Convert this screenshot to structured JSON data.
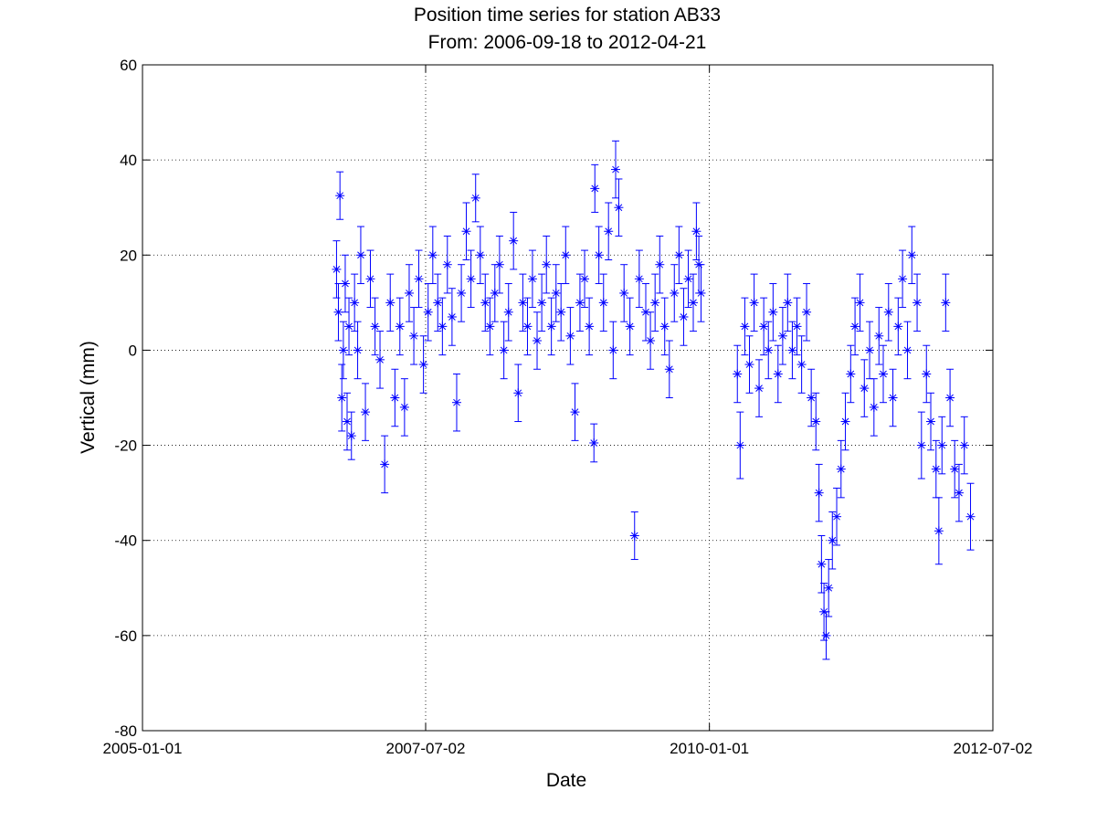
{
  "chart_data": {
    "type": "scatter",
    "title": "Position time series for station AB33",
    "subtitle": "From: 2006-09-18 to 2012-04-21",
    "xlabel": "Date",
    "ylabel": "Vertical (mm)",
    "xlim": [
      "2005-01-01",
      "2012-07-02"
    ],
    "ylim": [
      -80,
      60
    ],
    "xticks": [
      "2005-01-01",
      "2007-07-02",
      "2010-01-01",
      "2012-07-02"
    ],
    "yticks": [
      -80,
      -60,
      -40,
      -20,
      0,
      20,
      40,
      60
    ],
    "grid": true,
    "marker": "asterisk",
    "error_bars": true,
    "color": "#0000ff",
    "series": [
      {
        "values": [
          {
            "x": "2006-09-18",
            "y": 17,
            "err": 6
          },
          {
            "x": "2006-09-24",
            "y": 8,
            "err": 6
          },
          {
            "x": "2006-09-29",
            "y": 32.5,
            "err": 5
          },
          {
            "x": "2006-10-05",
            "y": -10,
            "err": 7
          },
          {
            "x": "2006-10-10",
            "y": 0,
            "err": 6
          },
          {
            "x": "2006-10-16",
            "y": 14,
            "err": 6
          },
          {
            "x": "2006-10-22",
            "y": -15,
            "err": 6
          },
          {
            "x": "2006-10-28",
            "y": 5,
            "err": 6
          },
          {
            "x": "2006-11-05",
            "y": -18,
            "err": 5
          },
          {
            "x": "2006-11-15",
            "y": 10,
            "err": 6
          },
          {
            "x": "2006-11-25",
            "y": 0,
            "err": 6
          },
          {
            "x": "2006-12-05",
            "y": 20,
            "err": 6
          },
          {
            "x": "2006-12-20",
            "y": -13,
            "err": 6
          },
          {
            "x": "2007-01-05",
            "y": 15,
            "err": 6
          },
          {
            "x": "2007-01-20",
            "y": 5,
            "err": 6
          },
          {
            "x": "2007-02-05",
            "y": -2,
            "err": 6
          },
          {
            "x": "2007-02-20",
            "y": -24,
            "err": 6
          },
          {
            "x": "2007-03-10",
            "y": 10,
            "err": 6
          },
          {
            "x": "2007-03-25",
            "y": -10,
            "err": 6
          },
          {
            "x": "2007-04-10",
            "y": 5,
            "err": 6
          },
          {
            "x": "2007-04-25",
            "y": -12,
            "err": 6
          },
          {
            "x": "2007-05-10",
            "y": 12,
            "err": 6
          },
          {
            "x": "2007-05-25",
            "y": 3,
            "err": 6
          },
          {
            "x": "2007-06-10",
            "y": 15,
            "err": 6
          },
          {
            "x": "2007-06-25",
            "y": -3,
            "err": 6
          },
          {
            "x": "2007-07-10",
            "y": 8,
            "err": 6
          },
          {
            "x": "2007-07-25",
            "y": 20,
            "err": 6
          },
          {
            "x": "2007-08-10",
            "y": 10,
            "err": 6
          },
          {
            "x": "2007-08-25",
            "y": 5,
            "err": 6
          },
          {
            "x": "2007-09-10",
            "y": 18,
            "err": 6
          },
          {
            "x": "2007-09-25",
            "y": 7,
            "err": 6
          },
          {
            "x": "2007-10-10",
            "y": -11,
            "err": 6
          },
          {
            "x": "2007-10-25",
            "y": 12,
            "err": 6
          },
          {
            "x": "2007-11-10",
            "y": 25,
            "err": 6
          },
          {
            "x": "2007-11-25",
            "y": 15,
            "err": 6
          },
          {
            "x": "2007-12-10",
            "y": 32,
            "err": 5
          },
          {
            "x": "2007-12-25",
            "y": 20,
            "err": 6
          },
          {
            "x": "2008-01-10",
            "y": 10,
            "err": 6
          },
          {
            "x": "2008-01-25",
            "y": 5,
            "err": 6
          },
          {
            "x": "2008-02-10",
            "y": 12,
            "err": 6
          },
          {
            "x": "2008-02-25",
            "y": 18,
            "err": 6
          },
          {
            "x": "2008-03-10",
            "y": 0,
            "err": 6
          },
          {
            "x": "2008-03-25",
            "y": 8,
            "err": 6
          },
          {
            "x": "2008-04-10",
            "y": 23,
            "err": 6
          },
          {
            "x": "2008-04-25",
            "y": -9,
            "err": 6
          },
          {
            "x": "2008-05-10",
            "y": 10,
            "err": 6
          },
          {
            "x": "2008-05-25",
            "y": 5,
            "err": 6
          },
          {
            "x": "2008-06-10",
            "y": 15,
            "err": 6
          },
          {
            "x": "2008-06-25",
            "y": 2,
            "err": 6
          },
          {
            "x": "2008-07-10",
            "y": 10,
            "err": 6
          },
          {
            "x": "2008-07-25",
            "y": 18,
            "err": 6
          },
          {
            "x": "2008-08-10",
            "y": 5,
            "err": 6
          },
          {
            "x": "2008-08-25",
            "y": 12,
            "err": 6
          },
          {
            "x": "2008-09-10",
            "y": 8,
            "err": 6
          },
          {
            "x": "2008-09-25",
            "y": 20,
            "err": 6
          },
          {
            "x": "2008-10-10",
            "y": 3,
            "err": 6
          },
          {
            "x": "2008-10-25",
            "y": -13,
            "err": 6
          },
          {
            "x": "2008-11-10",
            "y": 10,
            "err": 6
          },
          {
            "x": "2008-11-25",
            "y": 15,
            "err": 6
          },
          {
            "x": "2008-12-10",
            "y": 5,
            "err": 6
          },
          {
            "x": "2008-12-25",
            "y": -19.5,
            "err": 4
          },
          {
            "x": "2008-12-28",
            "y": 34,
            "err": 5
          },
          {
            "x": "2009-01-10",
            "y": 20,
            "err": 6
          },
          {
            "x": "2009-01-25",
            "y": 10,
            "err": 6
          },
          {
            "x": "2009-02-10",
            "y": 25,
            "err": 6
          },
          {
            "x": "2009-02-25",
            "y": 0,
            "err": 6
          },
          {
            "x": "2009-03-05",
            "y": 38,
            "err": 6
          },
          {
            "x": "2009-03-15",
            "y": 30,
            "err": 6
          },
          {
            "x": "2009-04-01",
            "y": 12,
            "err": 6
          },
          {
            "x": "2009-04-20",
            "y": 5,
            "err": 6
          },
          {
            "x": "2009-05-05",
            "y": -39,
            "err": 5
          },
          {
            "x": "2009-05-20",
            "y": 15,
            "err": 6
          },
          {
            "x": "2009-06-10",
            "y": 8,
            "err": 6
          },
          {
            "x": "2009-06-25",
            "y": 2,
            "err": 6
          },
          {
            "x": "2009-07-10",
            "y": 10,
            "err": 6
          },
          {
            "x": "2009-07-25",
            "y": 18,
            "err": 6
          },
          {
            "x": "2009-08-10",
            "y": 5,
            "err": 6
          },
          {
            "x": "2009-08-25",
            "y": -4,
            "err": 6
          },
          {
            "x": "2009-09-10",
            "y": 12,
            "err": 6
          },
          {
            "x": "2009-09-25",
            "y": 20,
            "err": 6
          },
          {
            "x": "2009-10-10",
            "y": 7,
            "err": 6
          },
          {
            "x": "2009-10-25",
            "y": 15,
            "err": 6
          },
          {
            "x": "2009-11-10",
            "y": 10,
            "err": 6
          },
          {
            "x": "2009-11-20",
            "y": 25,
            "err": 6
          },
          {
            "x": "2009-11-28",
            "y": 18,
            "err": 6
          },
          {
            "x": "2009-12-05",
            "y": 12,
            "err": 6
          },
          {
            "x": "2010-04-01",
            "y": -5,
            "err": 6
          },
          {
            "x": "2010-04-10",
            "y": -20,
            "err": 7
          },
          {
            "x": "2010-04-25",
            "y": 5,
            "err": 6
          },
          {
            "x": "2010-05-10",
            "y": -3,
            "err": 6
          },
          {
            "x": "2010-05-25",
            "y": 10,
            "err": 6
          },
          {
            "x": "2010-06-10",
            "y": -8,
            "err": 6
          },
          {
            "x": "2010-06-25",
            "y": 5,
            "err": 6
          },
          {
            "x": "2010-07-10",
            "y": 0,
            "err": 6
          },
          {
            "x": "2010-07-25",
            "y": 8,
            "err": 6
          },
          {
            "x": "2010-08-10",
            "y": -5,
            "err": 6
          },
          {
            "x": "2010-08-25",
            "y": 3,
            "err": 6
          },
          {
            "x": "2010-09-10",
            "y": 10,
            "err": 6
          },
          {
            "x": "2010-09-25",
            "y": 0,
            "err": 6
          },
          {
            "x": "2010-10-10",
            "y": 5,
            "err": 6
          },
          {
            "x": "2010-10-25",
            "y": -3,
            "err": 6
          },
          {
            "x": "2010-11-10",
            "y": 8,
            "err": 6
          },
          {
            "x": "2010-11-25",
            "y": -10,
            "err": 6
          },
          {
            "x": "2010-12-10",
            "y": -15,
            "err": 6
          },
          {
            "x": "2010-12-20",
            "y": -30,
            "err": 6
          },
          {
            "x": "2010-12-28",
            "y": -45,
            "err": 6
          },
          {
            "x": "2011-01-05",
            "y": -55,
            "err": 6
          },
          {
            "x": "2011-01-12",
            "y": -60,
            "err": 5
          },
          {
            "x": "2011-01-20",
            "y": -50,
            "err": 6
          },
          {
            "x": "2011-02-01",
            "y": -40,
            "err": 6
          },
          {
            "x": "2011-02-15",
            "y": -35,
            "err": 6
          },
          {
            "x": "2011-03-01",
            "y": -25,
            "err": 6
          },
          {
            "x": "2011-03-15",
            "y": -15,
            "err": 6
          },
          {
            "x": "2011-04-01",
            "y": -5,
            "err": 6
          },
          {
            "x": "2011-04-15",
            "y": 5,
            "err": 6
          },
          {
            "x": "2011-05-01",
            "y": 10,
            "err": 6
          },
          {
            "x": "2011-05-15",
            "y": -8,
            "err": 6
          },
          {
            "x": "2011-06-01",
            "y": 0,
            "err": 6
          },
          {
            "x": "2011-06-15",
            "y": -12,
            "err": 6
          },
          {
            "x": "2011-07-01",
            "y": 3,
            "err": 6
          },
          {
            "x": "2011-07-15",
            "y": -5,
            "err": 6
          },
          {
            "x": "2011-08-01",
            "y": 8,
            "err": 6
          },
          {
            "x": "2011-08-15",
            "y": -10,
            "err": 6
          },
          {
            "x": "2011-09-01",
            "y": 5,
            "err": 6
          },
          {
            "x": "2011-09-15",
            "y": 15,
            "err": 6
          },
          {
            "x": "2011-10-01",
            "y": 0,
            "err": 6
          },
          {
            "x": "2011-10-15",
            "y": 20,
            "err": 6
          },
          {
            "x": "2011-11-01",
            "y": 10,
            "err": 6
          },
          {
            "x": "2011-11-15",
            "y": -20,
            "err": 7
          },
          {
            "x": "2011-12-01",
            "y": -5,
            "err": 6
          },
          {
            "x": "2011-12-15",
            "y": -15,
            "err": 6
          },
          {
            "x": "2012-01-01",
            "y": -25,
            "err": 6
          },
          {
            "x": "2012-01-10",
            "y": -38,
            "err": 7
          },
          {
            "x": "2012-01-20",
            "y": -20,
            "err": 6
          },
          {
            "x": "2012-02-01",
            "y": 10,
            "err": 6
          },
          {
            "x": "2012-02-15",
            "y": -10,
            "err": 6
          },
          {
            "x": "2012-03-01",
            "y": -25,
            "err": 6
          },
          {
            "x": "2012-03-15",
            "y": -30,
            "err": 6
          },
          {
            "x": "2012-04-01",
            "y": -20,
            "err": 6
          },
          {
            "x": "2012-04-21",
            "y": -35,
            "err": 7
          }
        ]
      }
    ]
  }
}
